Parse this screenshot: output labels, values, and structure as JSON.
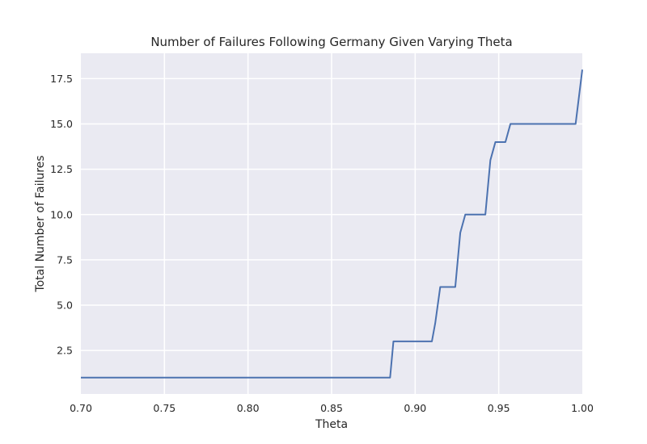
{
  "chart_data": {
    "type": "line",
    "title": "Number of Failures Following Germany Given Varying Theta",
    "xlabel": "Theta",
    "ylabel": "Total Number of Failures",
    "xlim": [
      0.7,
      1.0
    ],
    "ylim": [
      0.1,
      18.9
    ],
    "x_ticks": [
      "0.70",
      "0.75",
      "0.80",
      "0.85",
      "0.90",
      "0.95",
      "1.00"
    ],
    "y_ticks": [
      "2.5",
      "5.0",
      "7.5",
      "10.0",
      "12.5",
      "15.0",
      "17.5"
    ],
    "grid": true,
    "style": "seaborn-darkgrid",
    "colors": {
      "plot_bg": "#EAEAF2",
      "grid": "#FFFFFF",
      "line": "#4C72B0",
      "text": "#262626"
    },
    "series": [
      {
        "x": [
          0.7,
          0.885,
          0.887,
          0.91,
          0.912,
          0.915,
          0.924,
          0.927,
          0.93,
          0.942,
          0.945,
          0.948,
          0.954,
          0.957,
          0.996,
          1.0
        ],
        "y": [
          1,
          1,
          3,
          3,
          4,
          6,
          6,
          9,
          10,
          10,
          13,
          14,
          14,
          15,
          15,
          18
        ]
      }
    ]
  }
}
